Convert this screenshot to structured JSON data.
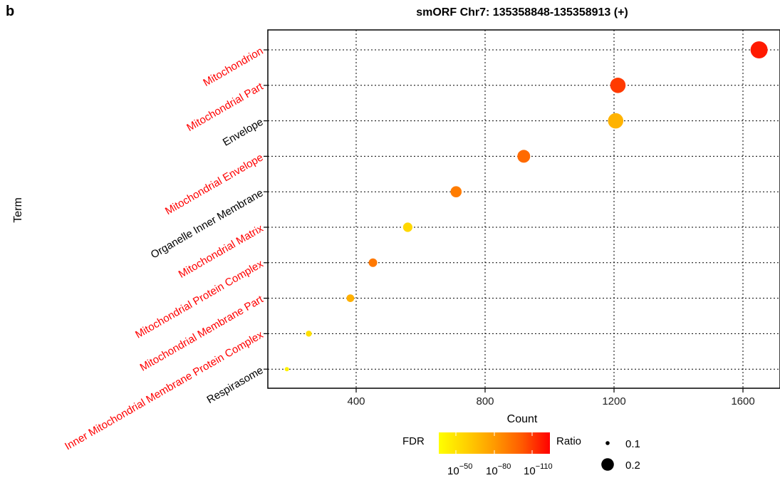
{
  "panel_letter": "b",
  "chart_data": {
    "type": "scatter",
    "title": "smORF Chr7: 135358848-135358913 (+)",
    "xlabel": "Count",
    "ylabel": "Term",
    "xlim": [
      100,
      1700
    ],
    "xticks": [
      400,
      800,
      1200,
      1600
    ],
    "grid": true,
    "highlight_color": "#ff0000",
    "default_label_color": "#000000",
    "points": [
      {
        "term": "Mitochondrion",
        "count": 1650,
        "ratio": 0.22,
        "color": "#ff1a00",
        "highlight": true
      },
      {
        "term": "Mitochondrial Part",
        "count": 1212,
        "ratio": 0.2,
        "color": "#ff3a00",
        "highlight": true
      },
      {
        "term": "Envelope",
        "count": 1205,
        "ratio": 0.2,
        "color": "#ffb300",
        "highlight": false
      },
      {
        "term": "Mitochondrial Envelope",
        "count": 920,
        "ratio": 0.17,
        "color": "#ff6a00",
        "highlight": true
      },
      {
        "term": "Organelle Inner Membrane",
        "count": 710,
        "ratio": 0.15,
        "color": "#ff7c00",
        "highlight": false
      },
      {
        "term": "Mitochondrial Matrix",
        "count": 560,
        "ratio": 0.13,
        "color": "#ffd800",
        "highlight": true
      },
      {
        "term": "Mitochondrial Protein Complex",
        "count": 452,
        "ratio": 0.12,
        "color": "#ff7800",
        "highlight": true
      },
      {
        "term": "Mitochondrial Membrane Part",
        "count": 382,
        "ratio": 0.11,
        "color": "#ffb000",
        "highlight": true
      },
      {
        "term": "Inner Mitochondrial Membrane Protein Complex",
        "count": 253,
        "ratio": 0.09,
        "color": "#ffe000",
        "highlight": true
      },
      {
        "term": "Respirasome",
        "count": 185,
        "ratio": 0.07,
        "color": "#fff200",
        "highlight": false
      }
    ],
    "legend": {
      "color_title": "FDR",
      "color_gradient": [
        "#ffff00",
        "#ffd000",
        "#ff9a00",
        "#ff5a00",
        "#ff0000"
      ],
      "color_ticks": [
        {
          "base": "10",
          "exp": "−50"
        },
        {
          "base": "10",
          "exp": "−80"
        },
        {
          "base": "10",
          "exp": "−110"
        }
      ],
      "size_title": "Ratio",
      "size_entries": [
        {
          "label": "0.1",
          "ratio": 0.1
        },
        {
          "label": "0.2",
          "ratio": 0.2
        }
      ]
    }
  }
}
